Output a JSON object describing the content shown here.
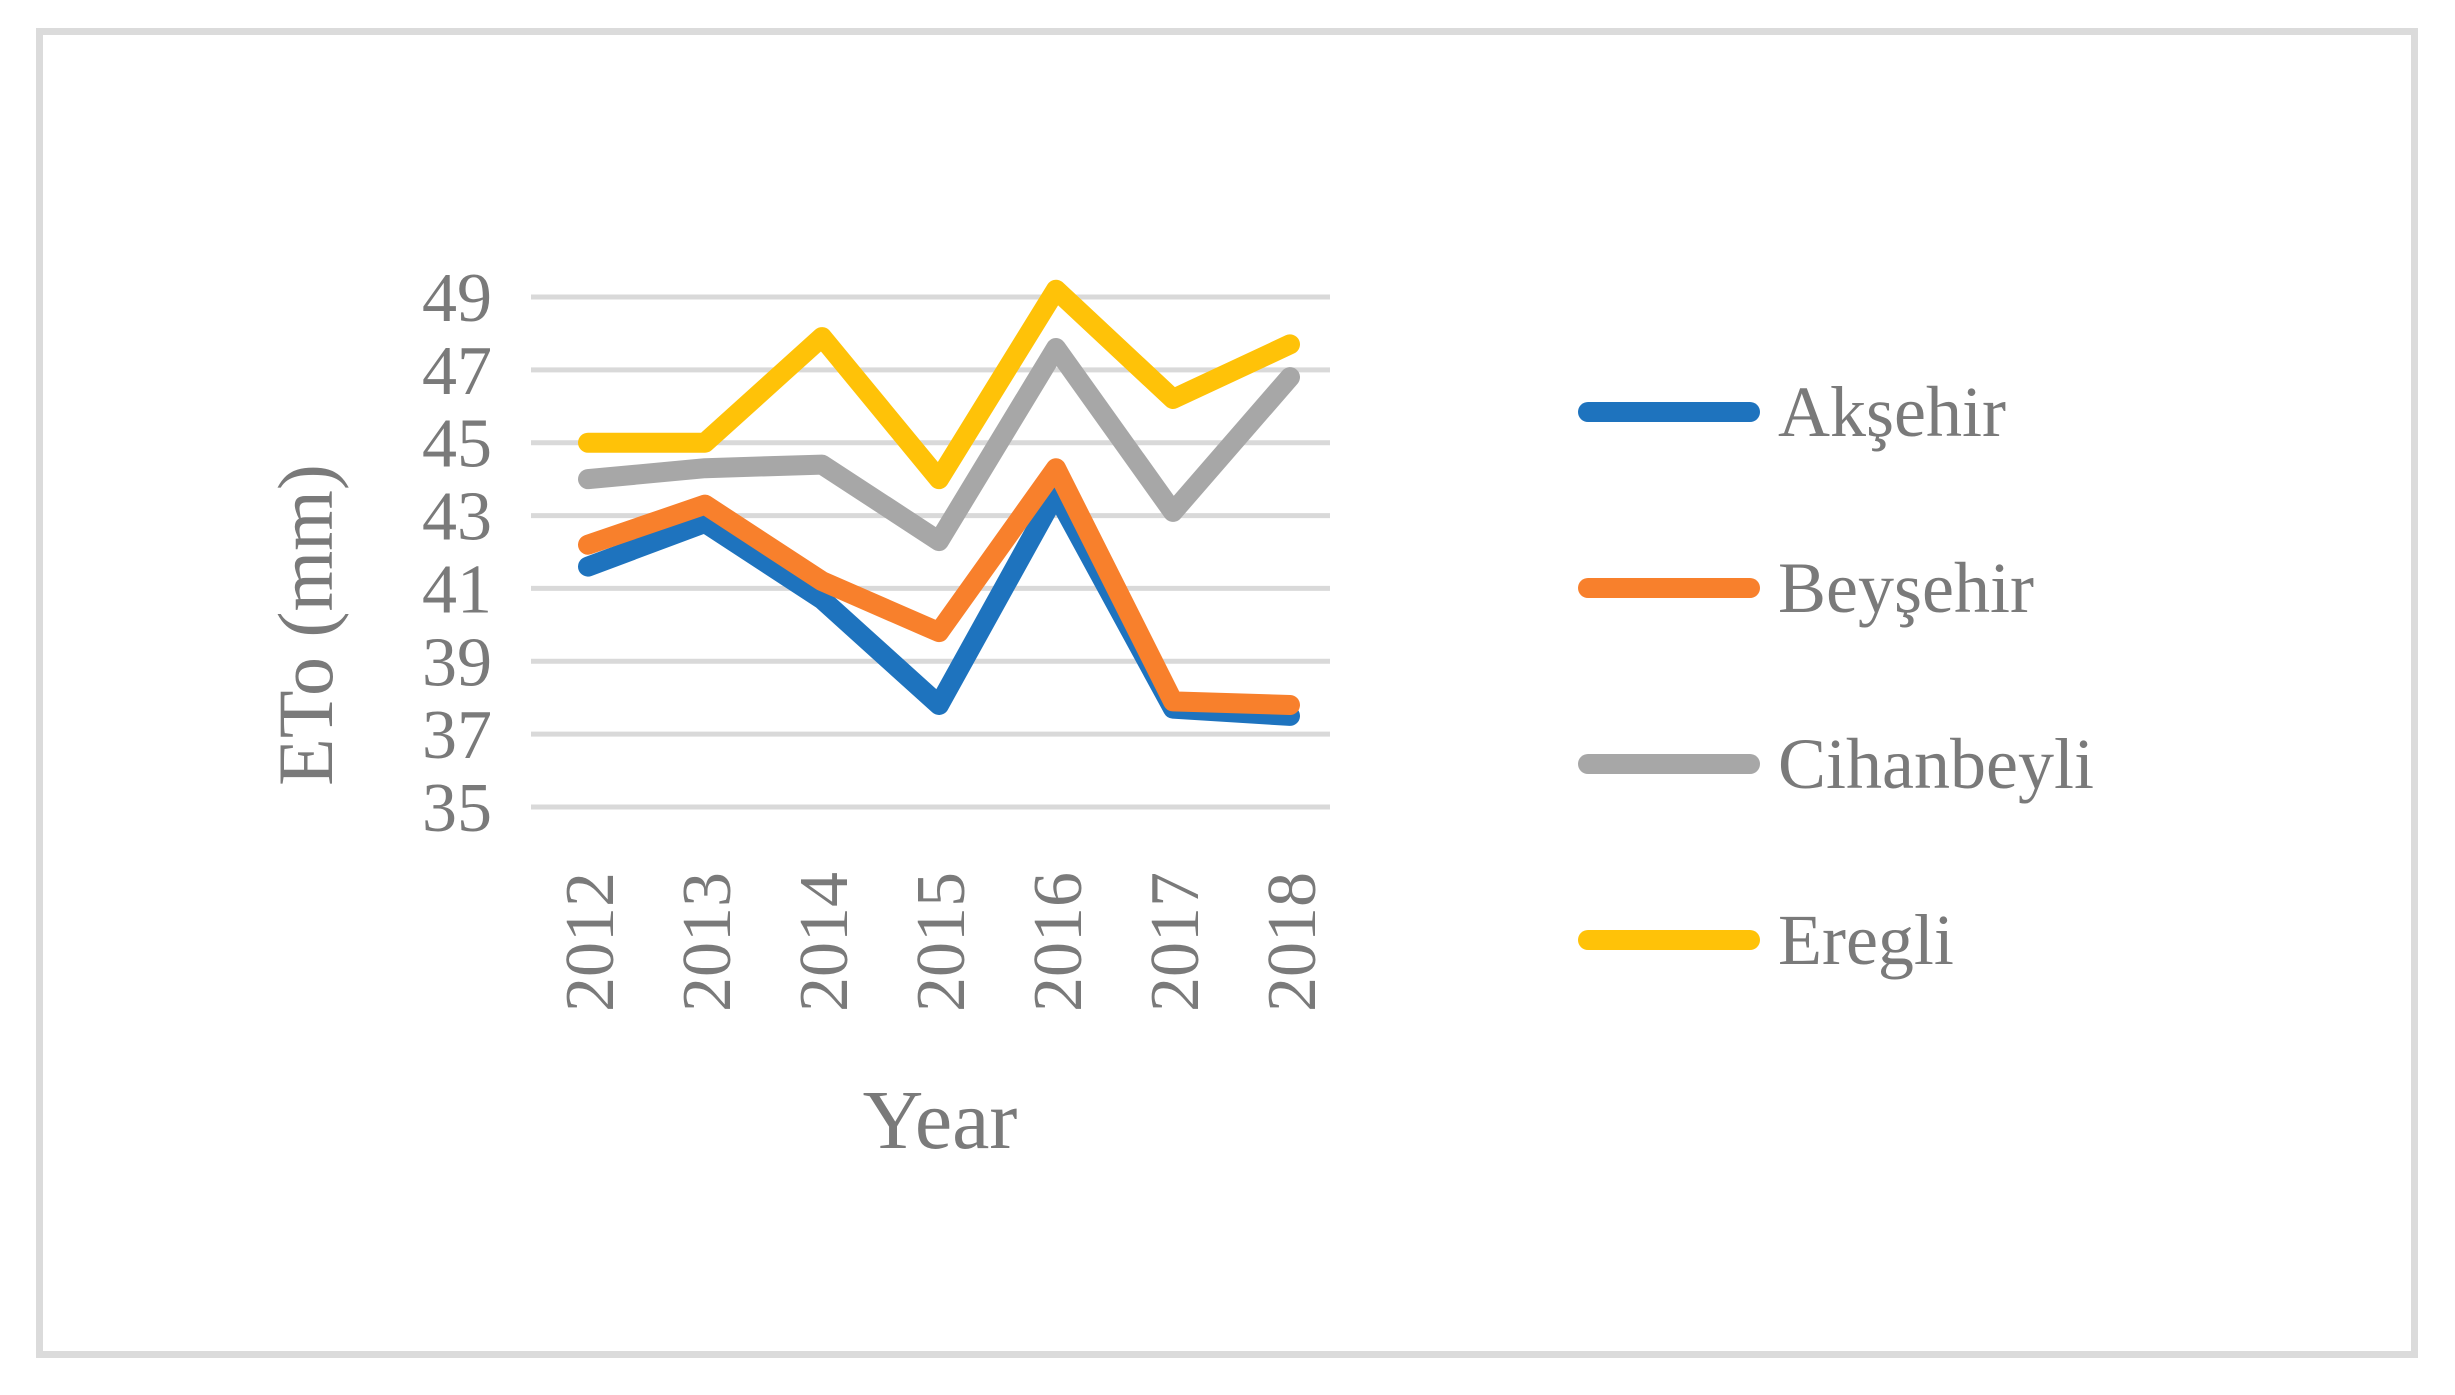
{
  "chart_data": {
    "type": "line",
    "xlabel": "Year",
    "ylabel": "ETo (mm)",
    "x": [
      "2012",
      "2013",
      "2014",
      "2015",
      "2016",
      "2017",
      "2018"
    ],
    "series": [
      {
        "name": "Akşehir",
        "color": "#1E73BE",
        "values": [
          41.6,
          42.8,
          40.7,
          37.8,
          43.6,
          37.7,
          37.5
        ]
      },
      {
        "name": "Beyşehir",
        "color": "#F8802C",
        "values": [
          42.2,
          43.3,
          41.2,
          39.8,
          44.3,
          37.9,
          37.8
        ]
      },
      {
        "name": "Cihanbeyli",
        "color": "#A7A7A7",
        "values": [
          44.0,
          44.3,
          44.4,
          42.3,
          47.6,
          43.1,
          46.8
        ]
      },
      {
        "name": "Eregli",
        "color": "#FFC208",
        "values": [
          45.0,
          45.0,
          47.9,
          44.0,
          49.2,
          46.2,
          47.7
        ]
      }
    ],
    "ylim": [
      35,
      49
    ],
    "yticks": [
      35,
      37,
      39,
      41,
      43,
      45,
      47,
      49
    ],
    "grid": true,
    "legend_position": "right",
    "text_color": "#7A7A7A",
    "grid_color": "#D9D9D9"
  }
}
